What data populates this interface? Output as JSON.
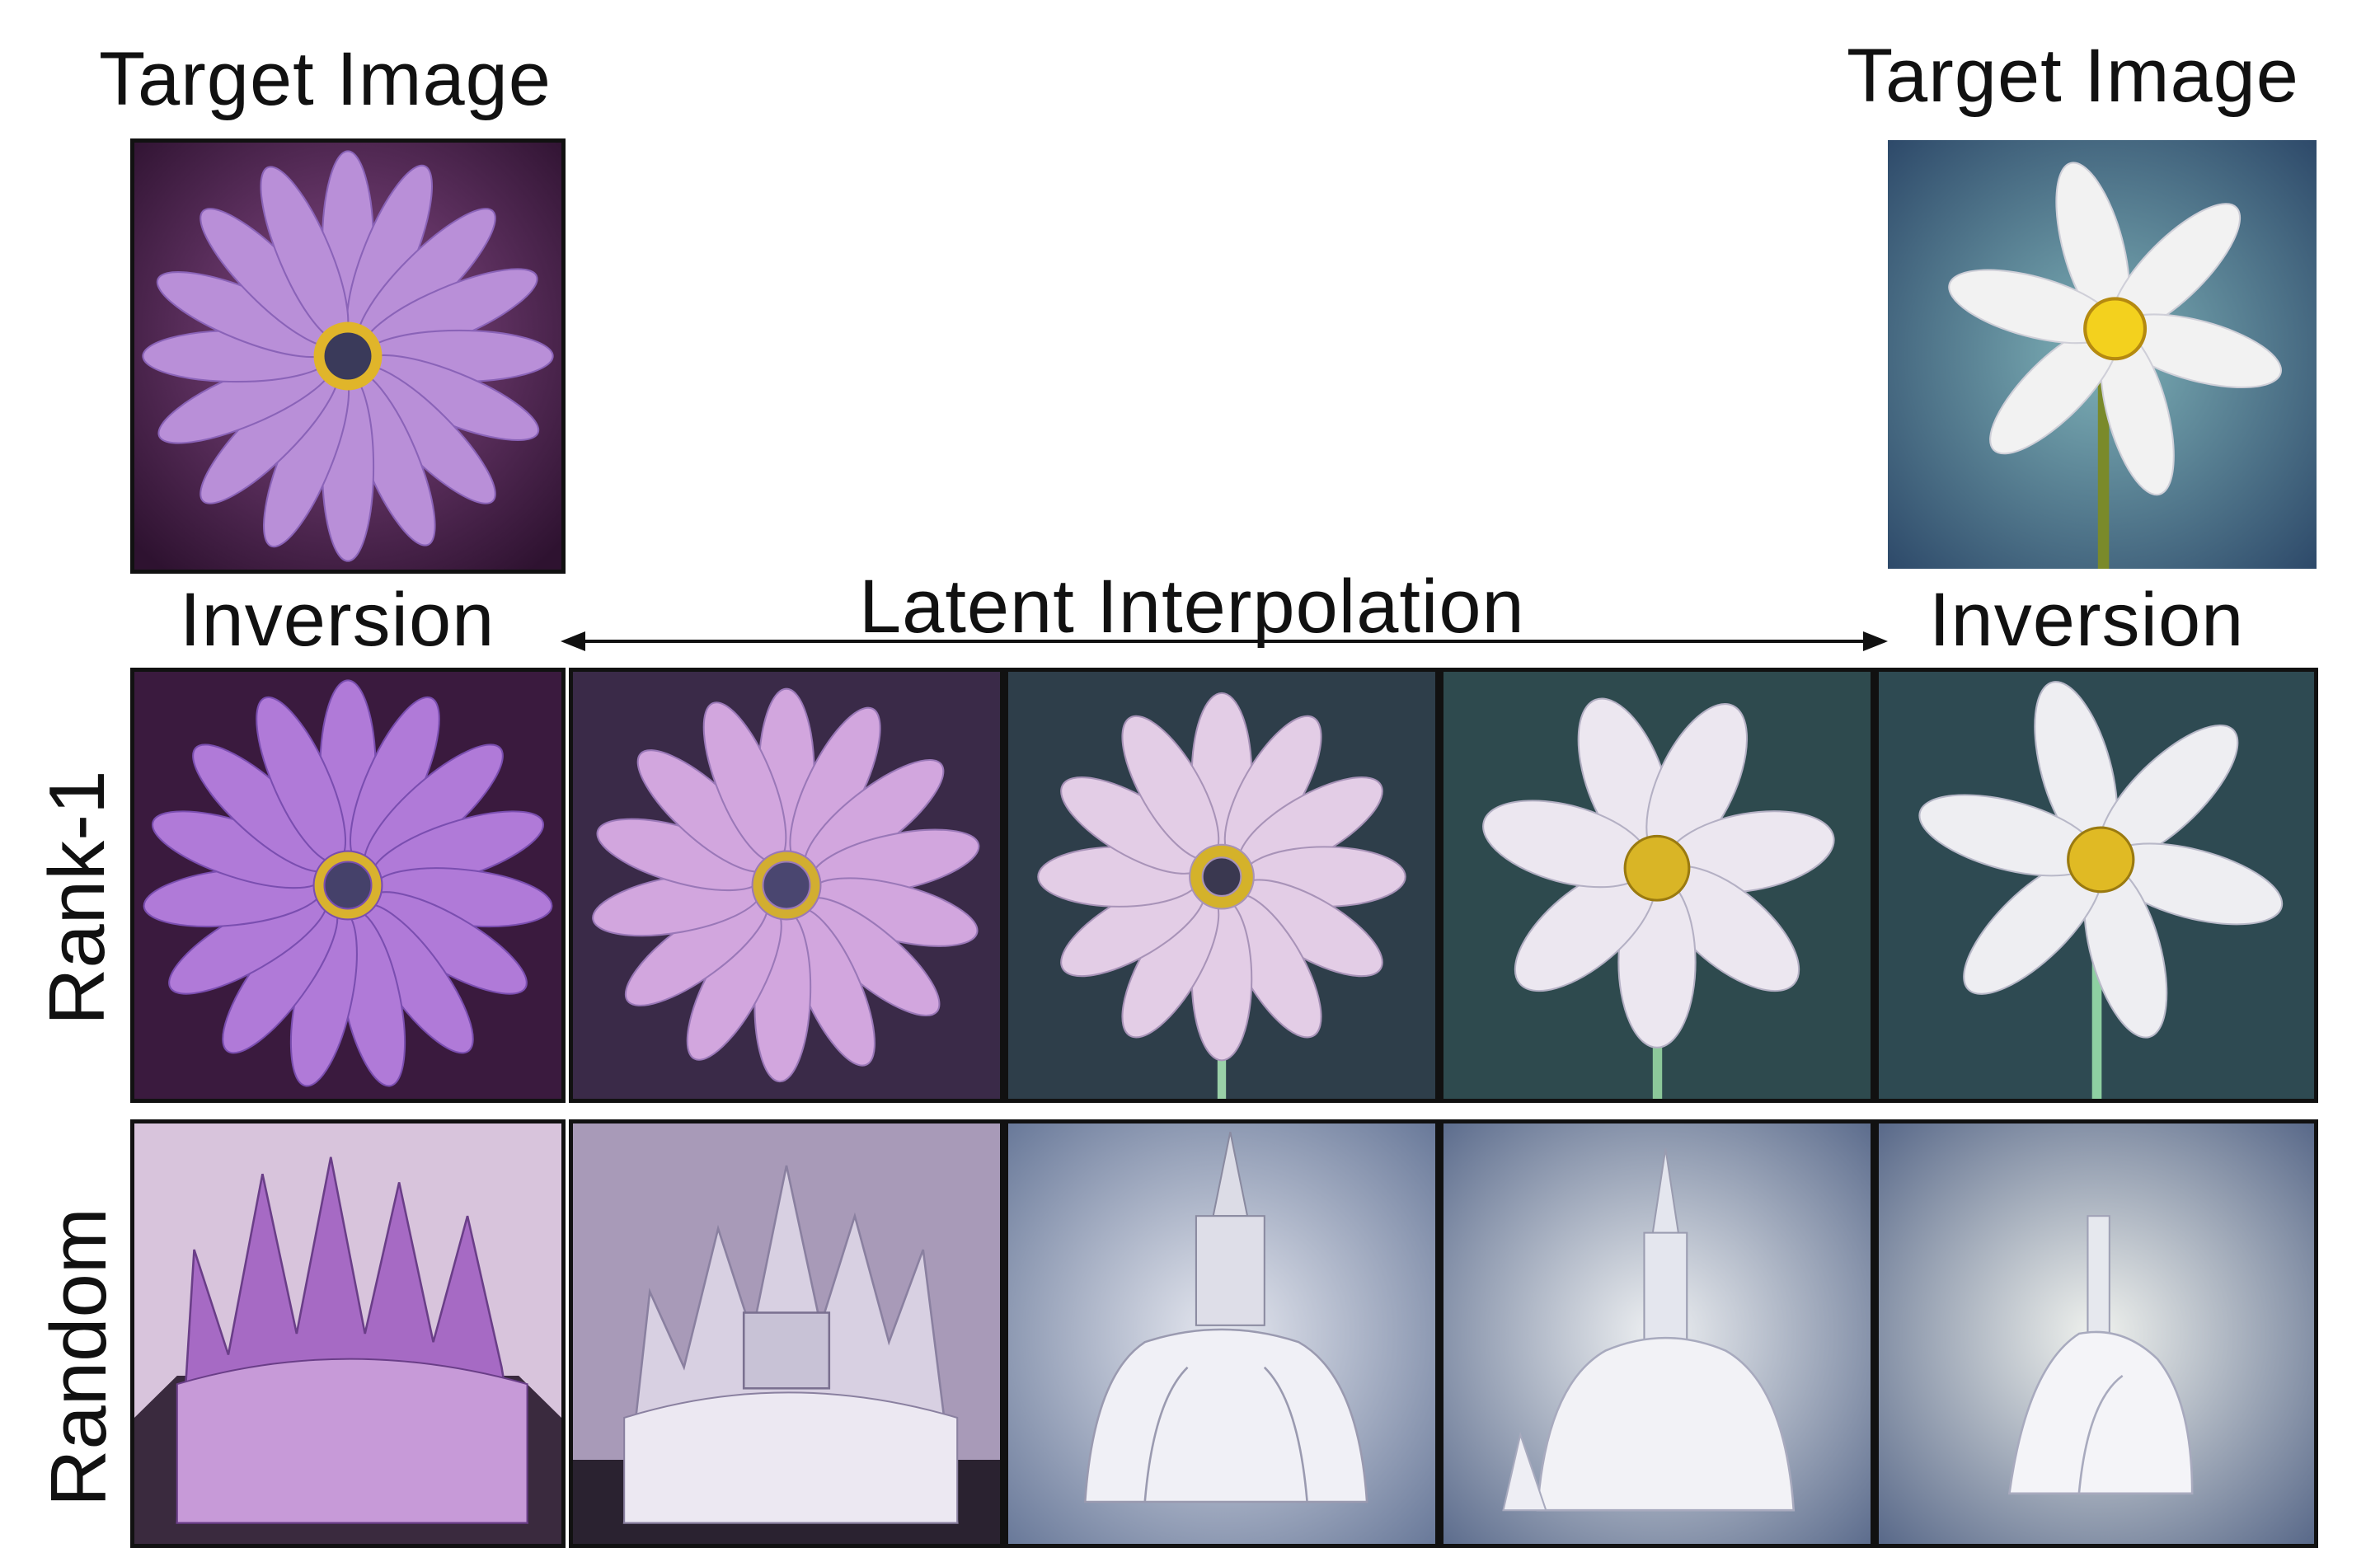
{
  "header": {
    "left_target": "Target Image",
    "right_target": "Target Image"
  },
  "subheader": {
    "left_inversion": "Inversion",
    "interpolation": "Latent Interpolation",
    "right_inversion": "Inversion"
  },
  "rows": {
    "rank1": "Rank-1",
    "random": "Random"
  }
}
